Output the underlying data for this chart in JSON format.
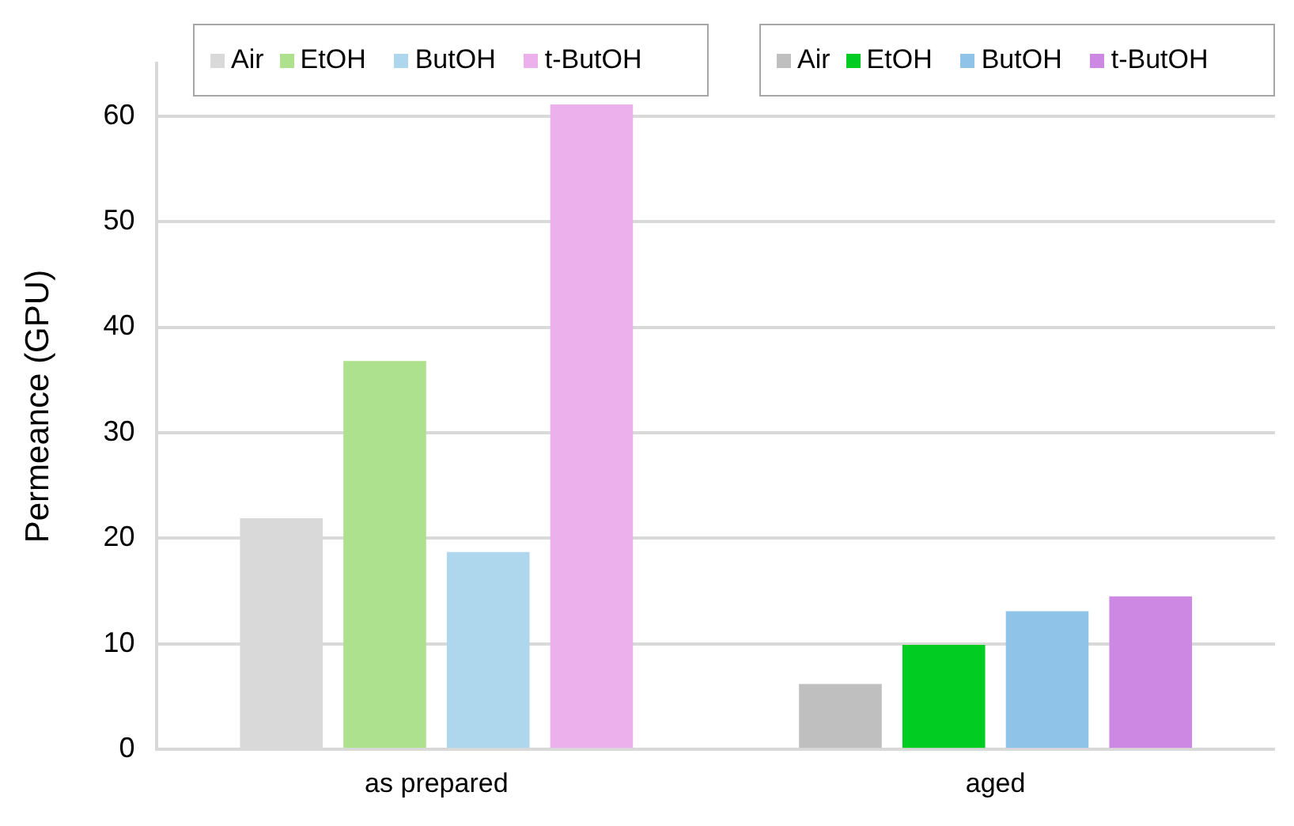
{
  "chart_data": {
    "type": "bar",
    "ylabel": "Permeance (GPU)",
    "categories": [
      "as prepared",
      "aged"
    ],
    "series": [
      {
        "name": "Air",
        "colors": [
          "#d9d9d9",
          "#bfbfbf"
        ],
        "values": [
          21.9,
          6.2
        ]
      },
      {
        "name": "EtOH",
        "colors": [
          "#aee18e",
          "#00cc22"
        ],
        "values": [
          36.8,
          9.9
        ]
      },
      {
        "name": "ButOH",
        "colors": [
          "#aed6ec",
          "#8fc3e8"
        ],
        "values": [
          18.7,
          13.1
        ]
      },
      {
        "name": "t-ButOH",
        "colors": [
          "#ecb0ec",
          "#cd88e4"
        ],
        "values": [
          61.1,
          14.5
        ]
      }
    ],
    "ylim": [
      0,
      65
    ],
    "yticks": [
      0,
      10,
      20,
      30,
      40,
      50,
      60
    ],
    "grid": "y",
    "legend": "top"
  }
}
